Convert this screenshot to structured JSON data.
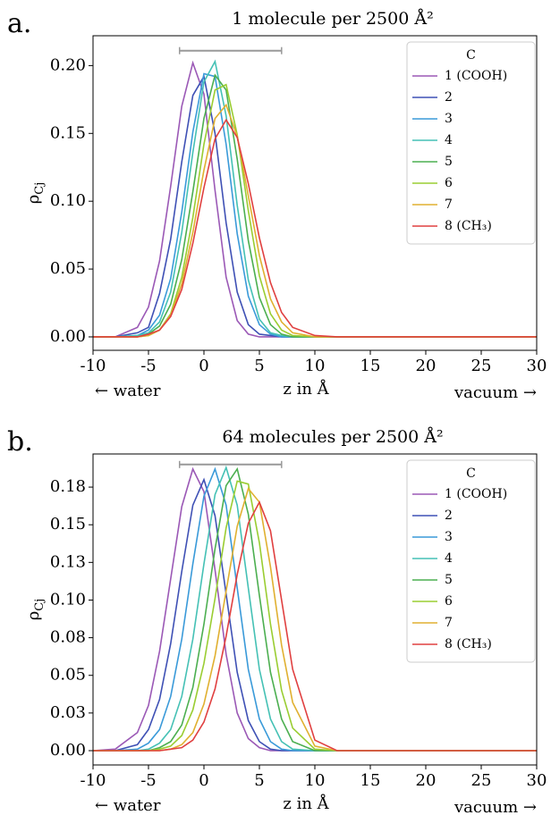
{
  "chart_data": [
    {
      "type": "line",
      "panel_label": "a.",
      "title": "1 molecule per 2500 Å²",
      "xlabel": "z in Å",
      "x_left_label": "← water",
      "x_right_label": "vacuum →",
      "ylabel": {
        "symbol": "ρ",
        "subscript": "Cj"
      },
      "x": [
        -10,
        -8,
        -6,
        -5,
        -4,
        -3,
        -2,
        -1,
        0,
        1,
        2,
        3,
        4,
        5,
        6,
        7,
        8,
        10,
        12,
        15,
        20,
        25,
        30
      ],
      "xlim": [
        -10,
        30
      ],
      "xticks": [
        -10,
        -5,
        0,
        5,
        10,
        15,
        20,
        25,
        30
      ],
      "ylim": [
        -0.0099,
        0.222
      ],
      "yticks": [
        {
          "value": 0,
          "label": "0.00"
        },
        {
          "value": 0.05,
          "label": "0.05"
        },
        {
          "value": 0.1,
          "label": "0.10"
        },
        {
          "value": 0.15,
          "label": "0.15"
        },
        {
          "value": 0.2,
          "label": "0.20"
        }
      ],
      "range_bar": {
        "x": [
          -2.2,
          7
        ],
        "y": 0.211,
        "color": "#999999"
      },
      "legend": "upper right",
      "legend_title": "C",
      "series": [
        {
          "name": "1 (COOH)",
          "color": "#9b59b6",
          "values": [
            0,
            0,
            0.007,
            0.022,
            0.056,
            0.111,
            0.17,
            0.202,
            0.179,
            0.108,
            0.044,
            0.012,
            0.002,
            0,
            0,
            0,
            0,
            0,
            0,
            0,
            0,
            0,
            0
          ]
        },
        {
          "name": "2",
          "color": "#3f51b5",
          "values": [
            0,
            0,
            0.003,
            0.007,
            0.032,
            0.072,
            0.129,
            0.178,
            0.192,
            0.15,
            0.084,
            0.033,
            0.009,
            0.002,
            0.001,
            0,
            0,
            0,
            0,
            0,
            0,
            0,
            0
          ]
        },
        {
          "name": "3",
          "color": "#3a9ad9",
          "values": [
            0,
            0,
            0.001,
            0.005,
            0.016,
            0.043,
            0.092,
            0.151,
            0.194,
            0.192,
            0.142,
            0.076,
            0.03,
            0.009,
            0.002,
            0,
            0,
            0,
            0,
            0,
            0,
            0,
            0
          ]
        },
        {
          "name": "4",
          "color": "#45c1b5",
          "values": [
            0,
            0,
            0.001,
            0.003,
            0.011,
            0.033,
            0.077,
            0.136,
            0.188,
            0.203,
            0.163,
            0.097,
            0.042,
            0.013,
            0.003,
            0.001,
            0,
            0,
            0,
            0,
            0,
            0,
            0
          ]
        },
        {
          "name": "5",
          "color": "#4caf50",
          "values": [
            0,
            0,
            0,
            0.002,
            0.008,
            0.024,
            0.057,
            0.107,
            0.161,
            0.193,
            0.182,
            0.131,
            0.071,
            0.029,
            0.009,
            0.002,
            0,
            0,
            0,
            0,
            0,
            0,
            0
          ]
        },
        {
          "name": "6",
          "color": "#9acd32",
          "values": [
            0,
            0,
            0,
            0.001,
            0.005,
            0.017,
            0.044,
            0.088,
            0.142,
            0.182,
            0.186,
            0.149,
            0.093,
            0.045,
            0.017,
            0.005,
            0.001,
            0,
            0,
            0,
            0,
            0,
            0
          ]
        },
        {
          "name": "7",
          "color": "#e0b030",
          "values": [
            0,
            0,
            0,
            0.001,
            0.005,
            0.016,
            0.039,
            0.077,
            0.123,
            0.161,
            0.171,
            0.148,
            0.104,
            0.06,
            0.028,
            0.011,
            0.003,
            0,
            0,
            0,
            0,
            0,
            0
          ]
        },
        {
          "name": "8 (CH₃)",
          "color": "#e04040",
          "values": [
            0,
            0,
            0,
            0.002,
            0.005,
            0.015,
            0.035,
            0.069,
            0.11,
            0.146,
            0.16,
            0.147,
            0.113,
            0.073,
            0.04,
            0.018,
            0.007,
            0.001,
            0,
            0,
            0,
            0,
            0
          ]
        }
      ]
    },
    {
      "type": "line",
      "panel_label": "b.",
      "title": "64 molecules per 2500 Å²",
      "xlabel": "z in Å",
      "x_left_label": "← water",
      "x_right_label": "vacuum →",
      "ylabel": {
        "symbol": "ρ",
        "subscript": "Cj"
      },
      "x": [
        -10,
        -8,
        -6,
        -5,
        -4,
        -3,
        -2,
        -1,
        0,
        1,
        2,
        3,
        4,
        5,
        6,
        7,
        8,
        10,
        12,
        15,
        20,
        25,
        30
      ],
      "xlim": [
        -10,
        30
      ],
      "xticks": [
        -10,
        -5,
        0,
        5,
        10,
        15,
        20,
        25,
        30
      ],
      "ylim": [
        -0.0095,
        0.197
      ],
      "yticks": [
        {
          "value": 0,
          "label": "0.00"
        },
        {
          "value": 0.025,
          "label": "0.03"
        },
        {
          "value": 0.05,
          "label": "0.05"
        },
        {
          "value": 0.075,
          "label": "0.08"
        },
        {
          "value": 0.1,
          "label": "0.10"
        },
        {
          "value": 0.125,
          "label": "0.13"
        },
        {
          "value": 0.15,
          "label": "0.15"
        },
        {
          "value": 0.175,
          "label": "0.18"
        }
      ],
      "range_bar": {
        "x": [
          -2.2,
          7
        ],
        "y": 0.19,
        "color": "#999999"
      },
      "legend": "upper right",
      "legend_title": "C",
      "series": [
        {
          "name": "1 (COOH)",
          "color": "#9b59b6",
          "values": [
            0,
            0.001,
            0.012,
            0.03,
            0.066,
            0.114,
            0.162,
            0.187,
            0.172,
            0.12,
            0.064,
            0.025,
            0.008,
            0.002,
            0,
            0,
            0,
            0,
            0,
            0,
            0,
            0,
            0
          ]
        },
        {
          "name": "2",
          "color": "#3f51b5",
          "values": [
            0,
            0,
            0.004,
            0.014,
            0.034,
            0.071,
            0.119,
            0.163,
            0.18,
            0.156,
            0.104,
            0.052,
            0.02,
            0.006,
            0.001,
            0,
            0,
            0,
            0,
            0,
            0,
            0,
            0
          ]
        },
        {
          "name": "3",
          "color": "#3a9ad9",
          "values": [
            0,
            0,
            0.001,
            0.005,
            0.014,
            0.036,
            0.074,
            0.124,
            0.169,
            0.187,
            0.163,
            0.108,
            0.054,
            0.021,
            0.006,
            0.001,
            0,
            0,
            0,
            0,
            0,
            0,
            0
          ]
        },
        {
          "name": "4",
          "color": "#45c1b5",
          "values": [
            0,
            0,
            0,
            0.001,
            0.005,
            0.014,
            0.036,
            0.074,
            0.124,
            0.17,
            0.188,
            0.163,
            0.108,
            0.054,
            0.021,
            0.006,
            0.001,
            0,
            0,
            0,
            0,
            0,
            0
          ]
        },
        {
          "name": "5",
          "color": "#4caf50",
          "values": [
            0,
            0,
            0,
            0,
            0.002,
            0.006,
            0.017,
            0.042,
            0.084,
            0.134,
            0.176,
            0.187,
            0.157,
            0.103,
            0.052,
            0.021,
            0.006,
            0,
            0,
            0,
            0,
            0,
            0
          ]
        },
        {
          "name": "6",
          "color": "#9acd32",
          "values": [
            0,
            0,
            0,
            0,
            0.001,
            0.003,
            0.01,
            0.027,
            0.058,
            0.101,
            0.148,
            0.179,
            0.177,
            0.138,
            0.084,
            0.04,
            0.015,
            0.001,
            0,
            0,
            0,
            0,
            0
          ]
        },
        {
          "name": "7",
          "color": "#e0b030",
          "values": [
            0,
            0,
            0,
            0,
            0,
            0.001,
            0.004,
            0.012,
            0.031,
            0.063,
            0.106,
            0.149,
            0.174,
            0.165,
            0.122,
            0.07,
            0.032,
            0.003,
            0,
            0,
            0,
            0,
            0
          ]
        },
        {
          "name": "8 (CH₃)",
          "color": "#e04040",
          "values": [
            0,
            0,
            0,
            0,
            0,
            0.001,
            0.002,
            0.007,
            0.019,
            0.041,
            0.076,
            0.117,
            0.151,
            0.165,
            0.146,
            0.1,
            0.054,
            0.007,
            0,
            0,
            0,
            0,
            0
          ]
        }
      ]
    }
  ]
}
